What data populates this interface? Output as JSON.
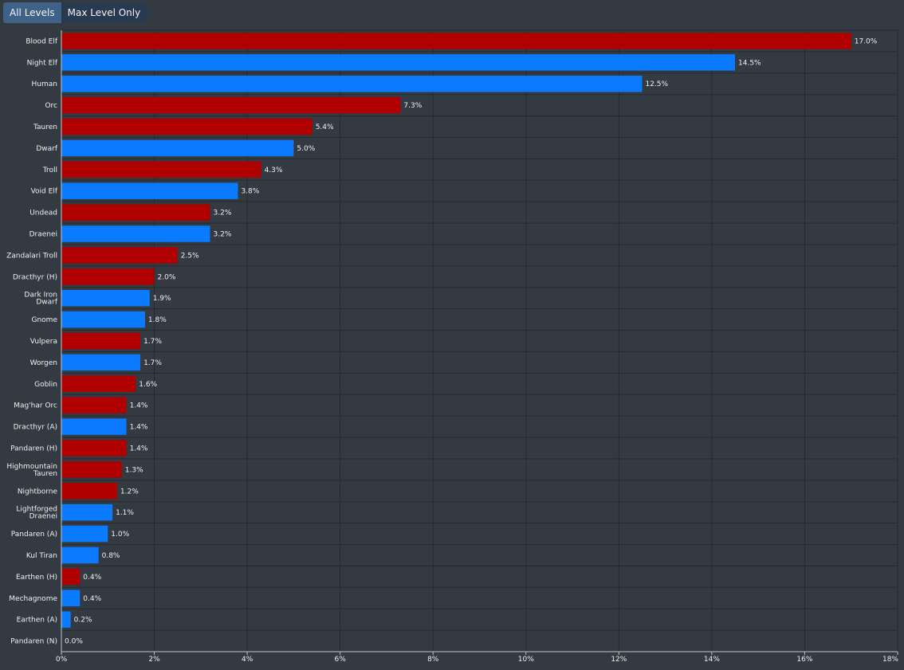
{
  "toggle": {
    "options": [
      "All Levels",
      "Max Level Only"
    ],
    "active_index": 0
  },
  "colors": {
    "background": "#343a42",
    "horde": "#b00000",
    "alliance": "#0a7bff",
    "neutral": "#888888",
    "grid": "#262b31",
    "axis": "#bfc3c9",
    "text": "#f0f0f0",
    "button_active": "#3f6288",
    "button_inactive": "#283a4f"
  },
  "chart_data": {
    "type": "bar",
    "orientation": "horizontal",
    "title": "",
    "xlabel": "",
    "ylabel": "",
    "xlim": [
      0,
      18
    ],
    "x_tick_values": [
      0,
      2,
      4,
      6,
      8,
      10,
      12,
      14,
      16,
      18
    ],
    "x_tick_labels": [
      "0%",
      "2%",
      "4%",
      "6%",
      "8%",
      "10%",
      "12%",
      "14%",
      "16%",
      "18%"
    ],
    "grid": true,
    "legend": "none",
    "categories": [
      "Blood Elf",
      "Night Elf",
      "Human",
      "Orc",
      "Tauren",
      "Dwarf",
      "Troll",
      "Void Elf",
      "Undead",
      "Draenei",
      "Zandalari Troll",
      "Dracthyr (H)",
      "Dark Iron Dwarf",
      "Gnome",
      "Vulpera",
      "Worgen",
      "Goblin",
      "Mag'har Orc",
      "Dracthyr (A)",
      "Pandaren (H)",
      "Highmountain Tauren",
      "Nightborne",
      "Lightforged Draenei",
      "Pandaren (A)",
      "Kul Tiran",
      "Earthen (H)",
      "Mechagnome",
      "Earthen (A)",
      "Pandaren (N)"
    ],
    "category_lines": [
      [
        "Blood Elf"
      ],
      [
        "Night Elf"
      ],
      [
        "Human"
      ],
      [
        "Orc"
      ],
      [
        "Tauren"
      ],
      [
        "Dwarf"
      ],
      [
        "Troll"
      ],
      [
        "Void Elf"
      ],
      [
        "Undead"
      ],
      [
        "Draenei"
      ],
      [
        "Zandalari Troll"
      ],
      [
        "Dracthyr (H)"
      ],
      [
        "Dark Iron",
        "Dwarf"
      ],
      [
        "Gnome"
      ],
      [
        "Vulpera"
      ],
      [
        "Worgen"
      ],
      [
        "Goblin"
      ],
      [
        "Mag'har Orc"
      ],
      [
        "Dracthyr (A)"
      ],
      [
        "Pandaren (H)"
      ],
      [
        "Highmountain",
        "Tauren"
      ],
      [
        "Nightborne"
      ],
      [
        "Lightforged",
        "Draenei"
      ],
      [
        "Pandaren (A)"
      ],
      [
        "Kul Tiran"
      ],
      [
        "Earthen (H)"
      ],
      [
        "Mechagnome"
      ],
      [
        "Earthen (A)"
      ],
      [
        "Pandaren (N)"
      ]
    ],
    "values": [
      17.0,
      14.5,
      12.5,
      7.3,
      5.4,
      5.0,
      4.3,
      3.8,
      3.2,
      3.2,
      2.5,
      2.0,
      1.9,
      1.8,
      1.7,
      1.7,
      1.6,
      1.4,
      1.4,
      1.4,
      1.3,
      1.2,
      1.1,
      1.0,
      0.8,
      0.4,
      0.4,
      0.2,
      0.0
    ],
    "value_labels": [
      "17.0%",
      "14.5%",
      "12.5%",
      "7.3%",
      "5.4%",
      "5.0%",
      "4.3%",
      "3.8%",
      "3.2%",
      "3.2%",
      "2.5%",
      "2.0%",
      "1.9%",
      "1.8%",
      "1.7%",
      "1.7%",
      "1.6%",
      "1.4%",
      "1.4%",
      "1.4%",
      "1.3%",
      "1.2%",
      "1.1%",
      "1.0%",
      "0.8%",
      "0.4%",
      "0.4%",
      "0.2%",
      "0.0%"
    ],
    "factions": [
      "horde",
      "alliance",
      "alliance",
      "horde",
      "horde",
      "alliance",
      "horde",
      "alliance",
      "horde",
      "alliance",
      "horde",
      "horde",
      "alliance",
      "alliance",
      "horde",
      "alliance",
      "horde",
      "horde",
      "alliance",
      "horde",
      "horde",
      "horde",
      "alliance",
      "alliance",
      "alliance",
      "horde",
      "alliance",
      "alliance",
      "neutral"
    ]
  }
}
